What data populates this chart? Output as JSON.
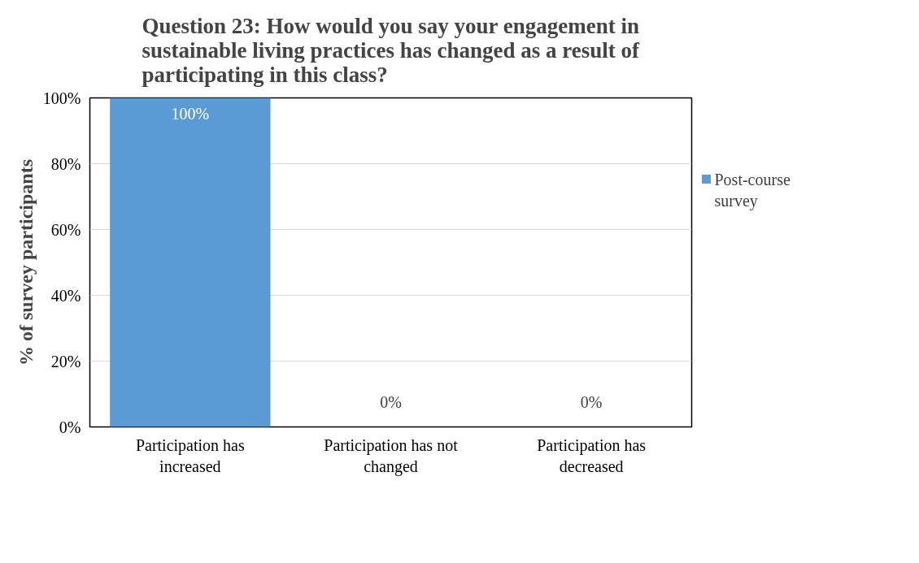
{
  "chart_data": {
    "type": "bar",
    "title": "Question 23: How would you say your engagement in sustainable living practices has changed as a result of participating in this class?",
    "ylabel": "% of survey participants",
    "categories": [
      "Participation has increased",
      "Participation has not changed",
      "Participation has decreased"
    ],
    "series": [
      {
        "name": "Post-course survey",
        "color": "#5b9bd5",
        "values": [
          100,
          0,
          0
        ],
        "value_labels": [
          "100%",
          "0%",
          "0%"
        ]
      }
    ],
    "ylim": [
      0,
      100
    ],
    "yticks": [
      {
        "value": 0,
        "label": "0%"
      },
      {
        "value": 20,
        "label": "20%"
      },
      {
        "value": 40,
        "label": "40%"
      },
      {
        "value": 60,
        "label": "60%"
      },
      {
        "value": 80,
        "label": "80%"
      },
      {
        "value": 100,
        "label": "100%"
      }
    ],
    "grid": "y",
    "legend": "right"
  }
}
